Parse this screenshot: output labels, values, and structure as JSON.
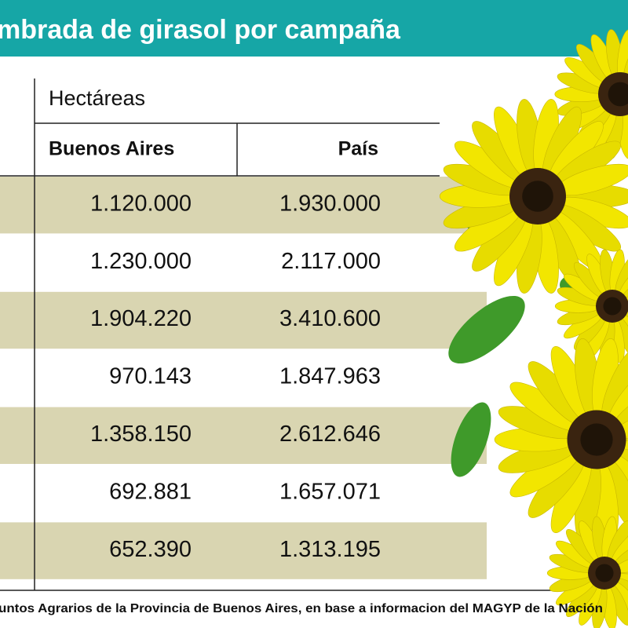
{
  "header": {
    "title": "mbrada de girasol por campaña"
  },
  "table": {
    "group_header": "Hectáreas",
    "columns": [
      "Buenos Aires",
      "País"
    ],
    "rows": [
      [
        "1.120.000",
        "1.930.000"
      ],
      [
        "1.230.000",
        "2.117.000"
      ],
      [
        "1.904.220",
        "3.410.600"
      ],
      [
        "970.143",
        "1.847.963"
      ],
      [
        "1.358.150",
        "2.612.646"
      ],
      [
        "692.881",
        "1.657.071"
      ],
      [
        "652.390",
        "1.313.195"
      ]
    ]
  },
  "footer": {
    "source": "untos Agrarios de la Provincia de Buenos Aires, en base a informacion del MAGYP de la Nación"
  }
}
